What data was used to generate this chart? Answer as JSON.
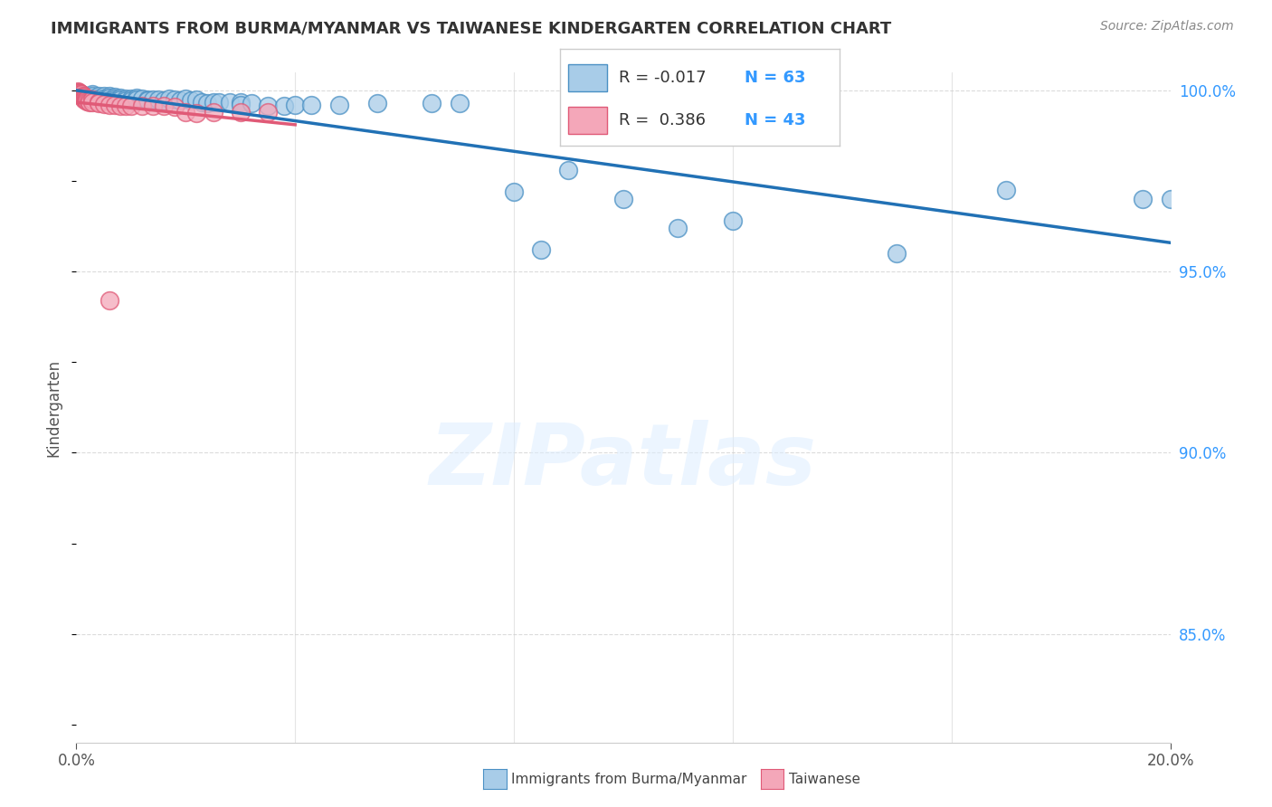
{
  "title": "IMMIGRANTS FROM BURMA/MYANMAR VS TAIWANESE KINDERGARTEN CORRELATION CHART",
  "source": "Source: ZipAtlas.com",
  "ylabel": "Kindergarten",
  "legend_blue_r": "-0.017",
  "legend_blue_n": "63",
  "legend_pink_r": "0.386",
  "legend_pink_n": "43",
  "watermark": "ZIPatlas",
  "xlim": [
    0.0,
    0.2
  ],
  "ylim": [
    0.82,
    1.005
  ],
  "yticks": [
    0.85,
    0.9,
    0.95,
    1.0
  ],
  "ytick_labels": [
    "85.0%",
    "90.0%",
    "95.0%",
    "100.0%"
  ],
  "xticks": [
    0.0,
    0.2
  ],
  "xtick_labels": [
    "0.0%",
    "20.0%"
  ],
  "blue_color": "#a8cce8",
  "pink_color": "#f4a7b9",
  "blue_edge_color": "#4a90c4",
  "pink_edge_color": "#e05a77",
  "trend_blue_color": "#2171b5",
  "trend_pink_color": "#e05a77",
  "background_color": "#ffffff",
  "grid_color": "#cccccc",
  "blue_x": [
    0.001,
    0.002,
    0.002,
    0.003,
    0.003,
    0.003,
    0.004,
    0.004,
    0.005,
    0.005,
    0.005,
    0.006,
    0.006,
    0.006,
    0.007,
    0.007,
    0.007,
    0.008,
    0.008,
    0.009,
    0.009,
    0.01,
    0.01,
    0.011,
    0.011,
    0.012,
    0.013,
    0.013,
    0.014,
    0.015,
    0.016,
    0.017,
    0.018,
    0.019,
    0.02,
    0.021,
    0.022,
    0.023,
    0.024,
    0.025,
    0.026,
    0.028,
    0.03,
    0.03,
    0.032,
    0.035,
    0.038,
    0.04,
    0.043,
    0.048,
    0.055,
    0.065,
    0.07,
    0.08,
    0.085,
    0.09,
    0.1,
    0.11,
    0.12,
    0.15,
    0.17,
    0.195,
    0.2
  ],
  "blue_y": [
    0.999,
    0.9985,
    0.998,
    0.999,
    0.9985,
    0.9978,
    0.9985,
    0.9978,
    0.9985,
    0.9978,
    0.9972,
    0.9985,
    0.998,
    0.9972,
    0.9982,
    0.9978,
    0.9972,
    0.998,
    0.9975,
    0.9978,
    0.9972,
    0.9978,
    0.9972,
    0.998,
    0.9975,
    0.9978,
    0.9975,
    0.9972,
    0.9975,
    0.9975,
    0.9972,
    0.9978,
    0.9975,
    0.9972,
    0.9978,
    0.9972,
    0.9975,
    0.9968,
    0.9965,
    0.9968,
    0.9968,
    0.9968,
    0.9968,
    0.996,
    0.9965,
    0.9958,
    0.9958,
    0.996,
    0.996,
    0.996,
    0.9965,
    0.9965,
    0.9965,
    0.972,
    0.956,
    0.978,
    0.97,
    0.962,
    0.964,
    0.955,
    0.9725,
    0.97,
    0.97
  ],
  "pink_x": [
    0.0002,
    0.0003,
    0.0004,
    0.0005,
    0.0006,
    0.0007,
    0.0008,
    0.0009,
    0.001,
    0.001,
    0.0012,
    0.0013,
    0.0013,
    0.0014,
    0.0015,
    0.0015,
    0.0016,
    0.0017,
    0.0018,
    0.002,
    0.002,
    0.0022,
    0.0025,
    0.003,
    0.003,
    0.004,
    0.004,
    0.005,
    0.006,
    0.007,
    0.008,
    0.009,
    0.01,
    0.012,
    0.014,
    0.016,
    0.018,
    0.02,
    0.022,
    0.025,
    0.03,
    0.035,
    0.006
  ],
  "pink_y": [
    0.9998,
    0.9996,
    0.9995,
    0.9993,
    0.9992,
    0.999,
    0.9988,
    0.9988,
    0.9985,
    0.999,
    0.9985,
    0.9982,
    0.998,
    0.9982,
    0.9978,
    0.9975,
    0.9978,
    0.9975,
    0.9975,
    0.9975,
    0.997,
    0.997,
    0.9968,
    0.9975,
    0.9968,
    0.9968,
    0.9965,
    0.9962,
    0.996,
    0.996,
    0.9958,
    0.9958,
    0.9958,
    0.9958,
    0.9958,
    0.9958,
    0.9955,
    0.994,
    0.9938,
    0.994,
    0.994,
    0.994,
    0.942
  ]
}
